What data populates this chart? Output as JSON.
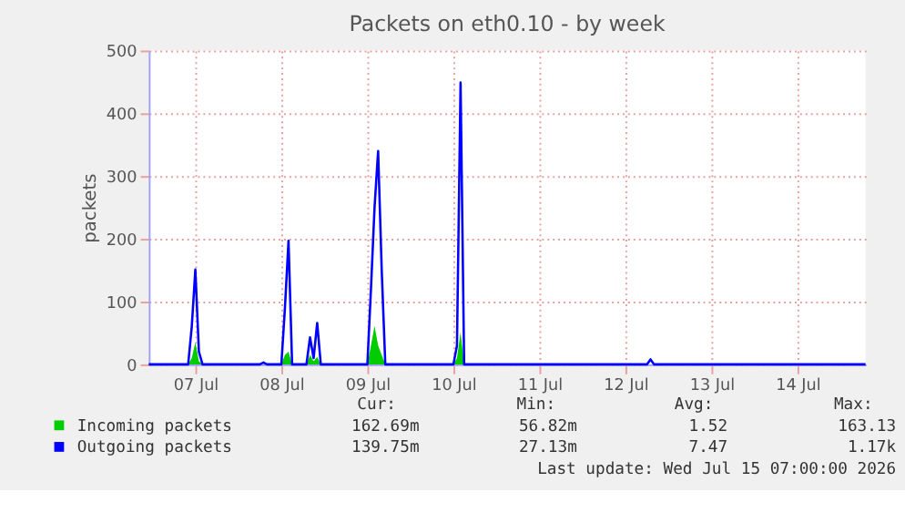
{
  "chart_data": {
    "type": "line",
    "title": "Packets on eth0.10 - by week",
    "ylabel": "packets",
    "xlim": [
      "2026-07-06T23:00",
      "2026-07-15T07:00"
    ],
    "xticks": [
      {
        "value": "2026-07-07T12:00",
        "label": "07 Jul"
      },
      {
        "value": "2026-07-08T12:00",
        "label": "08 Jul"
      },
      {
        "value": "2026-07-09T12:00",
        "label": "09 Jul"
      },
      {
        "value": "2026-07-10T12:00",
        "label": "10 Jul"
      },
      {
        "value": "2026-07-11T12:00",
        "label": "11 Jul"
      },
      {
        "value": "2026-07-12T12:00",
        "label": "12 Jul"
      },
      {
        "value": "2026-07-13T12:00",
        "label": "13 Jul"
      },
      {
        "value": "2026-07-14T12:00",
        "label": "14 Jul"
      }
    ],
    "ylim": [
      0,
      500
    ],
    "yticks": [
      0,
      100,
      200,
      300,
      400,
      500
    ],
    "grid": true,
    "legend": "bottom",
    "series": [
      {
        "name": "Incoming packets",
        "type": "area",
        "color": "#00cc00",
        "x": [
          "2026-07-06T23:00",
          "2026-07-07T10:00",
          "2026-07-07T11:00",
          "2026-07-07T12:00",
          "2026-07-07T13:00",
          "2026-07-07T14:00",
          "2026-07-08T12:00",
          "2026-07-08T13:00",
          "2026-07-08T14:00",
          "2026-07-08T15:00",
          "2026-07-08T19:00",
          "2026-07-08T20:00",
          "2026-07-08T21:00",
          "2026-07-08T22:00",
          "2026-07-08T23:00",
          "2026-07-09T12:00",
          "2026-07-09T13:00",
          "2026-07-09T14:00",
          "2026-07-09T15:00",
          "2026-07-09T16:00",
          "2026-07-09T17:00",
          "2026-07-10T12:00",
          "2026-07-10T13:00",
          "2026-07-10T14:00",
          "2026-07-10T15:00",
          "2026-07-15T07:00"
        ],
        "values": [
          0,
          0,
          10,
          35,
          5,
          0,
          0,
          15,
          20,
          0,
          0,
          15,
          5,
          12,
          0,
          0,
          30,
          61,
          30,
          15,
          0,
          0,
          10,
          51,
          0,
          0
        ]
      },
      {
        "name": "Outgoing packets",
        "color": "#0000ff",
        "x": [
          "2026-07-06T23:00",
          "2026-07-07T10:00",
          "2026-07-07T11:00",
          "2026-07-07T12:00",
          "2026-07-07T13:00",
          "2026-07-07T14:00",
          "2026-07-08T06:00",
          "2026-07-08T07:00",
          "2026-07-08T08:00",
          "2026-07-08T12:00",
          "2026-07-08T13:00",
          "2026-07-08T14:00",
          "2026-07-08T15:00",
          "2026-07-08T19:00",
          "2026-07-08T20:00",
          "2026-07-08T21:00",
          "2026-07-08T22:00",
          "2026-07-08T23:00",
          "2026-07-09T12:00",
          "2026-07-09T13:00",
          "2026-07-09T14:00",
          "2026-07-09T15:00",
          "2026-07-09T16:00",
          "2026-07-09T17:00",
          "2026-07-10T12:00",
          "2026-07-10T13:00",
          "2026-07-10T14:00",
          "2026-07-10T15:00",
          "2026-07-12T18:00",
          "2026-07-12T19:00",
          "2026-07-12T20:00",
          "2026-07-15T07:00"
        ],
        "values": [
          0,
          0,
          60,
          151,
          20,
          0,
          0,
          3,
          0,
          0,
          90,
          197,
          0,
          0,
          43,
          10,
          66,
          0,
          0,
          120,
          250,
          340,
          150,
          0,
          0,
          30,
          449,
          0,
          0,
          8,
          0,
          0
        ]
      }
    ],
    "annotations": [
      "Cur:",
      "Min:",
      "Avg:",
      "Max:",
      "162.69m",
      "56.82m",
      "1.52",
      "163.13",
      "139.75m",
      "27.13m",
      "7.47",
      "1.17k",
      "Last update: Wed Jul 15 07:00:00 2026"
    ]
  }
}
